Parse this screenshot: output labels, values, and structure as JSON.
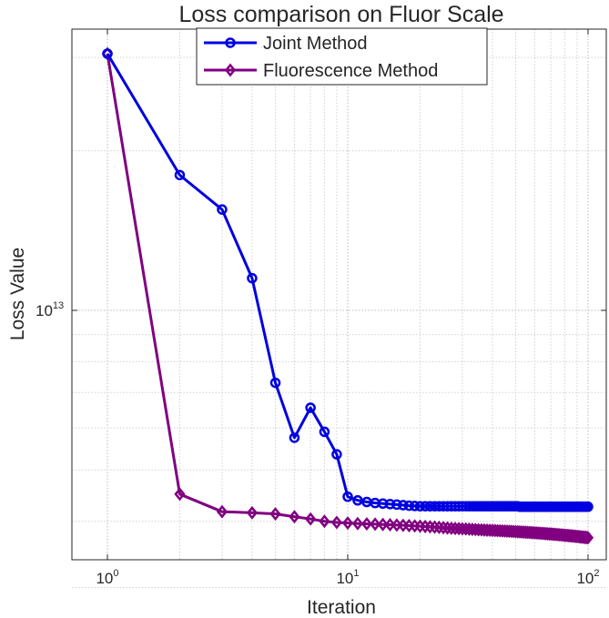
{
  "chart_data": {
    "type": "line",
    "title": "Loss comparison on Fluor Scale",
    "xlabel": "Iteration",
    "ylabel": "Loss Value",
    "xscale": "log",
    "yscale": "log",
    "xlim": [
      1,
      100
    ],
    "ylim": [
      2900000000000.0,
      35000000000000.0
    ],
    "grid": true,
    "legend_position": "top",
    "x_ticks": [
      {
        "base": "10",
        "exp": "0"
      },
      {
        "base": "10",
        "exp": "1"
      },
      {
        "base": "10",
        "exp": "2"
      }
    ],
    "y_ticks": [
      {
        "base": "10",
        "exp": "13"
      }
    ],
    "x": [
      1,
      2,
      3,
      4,
      5,
      6,
      7,
      8,
      9,
      10,
      11,
      12,
      13,
      14,
      15,
      16,
      17,
      18,
      19,
      20,
      21,
      22,
      23,
      24,
      25,
      26,
      27,
      28,
      29,
      30,
      31,
      32,
      33,
      34,
      35,
      36,
      37,
      38,
      39,
      40,
      41,
      42,
      43,
      44,
      45,
      46,
      47,
      48,
      49,
      50,
      51,
      52,
      53,
      54,
      55,
      56,
      57,
      58,
      59,
      60,
      61,
      62,
      63,
      64,
      65,
      66,
      67,
      68,
      69,
      70,
      71,
      72,
      73,
      74,
      75,
      76,
      77,
      78,
      79,
      80,
      81,
      82,
      83,
      84,
      85,
      86,
      87,
      88,
      89,
      90,
      91,
      92,
      93,
      94,
      95,
      96,
      97,
      98,
      99,
      100
    ],
    "series": [
      {
        "name": "Joint Method",
        "color": "#0000e0",
        "marker": "circle",
        "values": [
          30500000000000.0,
          18000000000000.0,
          15500000000000.0,
          11500000000000.0,
          7300000000000.0,
          5750000000000.0,
          6550000000000.0,
          5900000000000.0,
          5350000000000.0,
          4450000000000.0,
          4380000000000.0,
          4350000000000.0,
          4330000000000.0,
          4320000000000.0,
          4310000000000.0,
          4300000000000.0,
          4290000000000.0,
          4280000000000.0,
          4275000000000.0,
          4270000000000.0,
          4270000000000.0,
          4270000000000.0,
          4270000000000.0,
          4270000000000.0,
          4270000000000.0,
          4270000000000.0,
          4270000000000.0,
          4270000000000.0,
          4270000000000.0,
          4270000000000.0,
          4270000000000.0,
          4270000000000.0,
          4270000000000.0,
          4270000000000.0,
          4270000000000.0,
          4270000000000.0,
          4270000000000.0,
          4270000000000.0,
          4270000000000.0,
          4270000000000.0,
          4270000000000.0,
          4270000000000.0,
          4270000000000.0,
          4270000000000.0,
          4270000000000.0,
          4270000000000.0,
          4270000000000.0,
          4270000000000.0,
          4270000000000.0,
          4270000000000.0,
          4270000000000.0,
          4260000000000.0,
          4260000000000.0,
          4260000000000.0,
          4260000000000.0,
          4260000000000.0,
          4260000000000.0,
          4260000000000.0,
          4260000000000.0,
          4260000000000.0,
          4260000000000.0,
          4260000000000.0,
          4260000000000.0,
          4260000000000.0,
          4260000000000.0,
          4260000000000.0,
          4260000000000.0,
          4260000000000.0,
          4260000000000.0,
          4260000000000.0,
          4260000000000.0,
          4260000000000.0,
          4260000000000.0,
          4260000000000.0,
          4260000000000.0,
          4260000000000.0,
          4260000000000.0,
          4260000000000.0,
          4260000000000.0,
          4260000000000.0,
          4260000000000.0,
          4260000000000.0,
          4260000000000.0,
          4260000000000.0,
          4260000000000.0,
          4260000000000.0,
          4260000000000.0,
          4260000000000.0,
          4260000000000.0,
          4260000000000.0,
          4260000000000.0,
          4260000000000.0,
          4260000000000.0,
          4260000000000.0,
          4260000000000.0,
          4260000000000.0,
          4260000000000.0,
          4260000000000.0,
          4260000000000.0,
          4260000000000.0
        ]
      },
      {
        "name": "Fluorescence Method",
        "color": "#800080",
        "marker": "diamond",
        "values": [
          30500000000000.0,
          4500000000000.0,
          4170000000000.0,
          4150000000000.0,
          4130000000000.0,
          4080000000000.0,
          4040000000000.0,
          4000000000000.0,
          3980000000000.0,
          3970000000000.0,
          3960000000000.0,
          3955000000000.0,
          3950000000000.0,
          3945000000000.0,
          3940000000000.0,
          3935000000000.0,
          3930000000000.0,
          3925000000000.0,
          3920000000000.0,
          3915000000000.0,
          3910000000000.0,
          3905000000000.0,
          3900000000000.0,
          3895000000000.0,
          3890000000000.0,
          3885000000000.0,
          3880000000000.0,
          3877000000000.0,
          3874000000000.0,
          3871000000000.0,
          3868000000000.0,
          3865000000000.0,
          3862000000000.0,
          3859000000000.0,
          3856000000000.0,
          3853000000000.0,
          3850000000000.0,
          3848000000000.0,
          3846000000000.0,
          3844000000000.0,
          3842000000000.0,
          3840000000000.0,
          3838000000000.0,
          3836000000000.0,
          3834000000000.0,
          3832000000000.0,
          3830000000000.0,
          3828000000000.0,
          3826000000000.0,
          3824000000000.0,
          3822000000000.0,
          3820000000000.0,
          3818000000000.0,
          3816000000000.0,
          3814000000000.0,
          3812000000000.0,
          3810000000000.0,
          3808000000000.0,
          3806000000000.0,
          3804000000000.0,
          3802000000000.0,
          3800000000000.0,
          3798000000000.0,
          3796000000000.0,
          3794000000000.0,
          3792000000000.0,
          3790000000000.0,
          3788000000000.0,
          3786000000000.0,
          3784000000000.0,
          3782000000000.0,
          3780000000000.0,
          3778000000000.0,
          3776000000000.0,
          3774000000000.0,
          3772000000000.0,
          3770000000000.0,
          3768000000000.0,
          3766000000000.0,
          3764000000000.0,
          3762000000000.0,
          3760000000000.0,
          3758000000000.0,
          3756000000000.0,
          3754000000000.0,
          3752000000000.0,
          3750000000000.0,
          3748000000000.0,
          3746000000000.0,
          3744000000000.0,
          3742000000000.0,
          3740000000000.0,
          3738000000000.0,
          3736000000000.0,
          3734000000000.0,
          3732000000000.0,
          3730000000000.0,
          3728000000000.0,
          3726000000000.0,
          3724000000000.0
        ]
      }
    ]
  }
}
